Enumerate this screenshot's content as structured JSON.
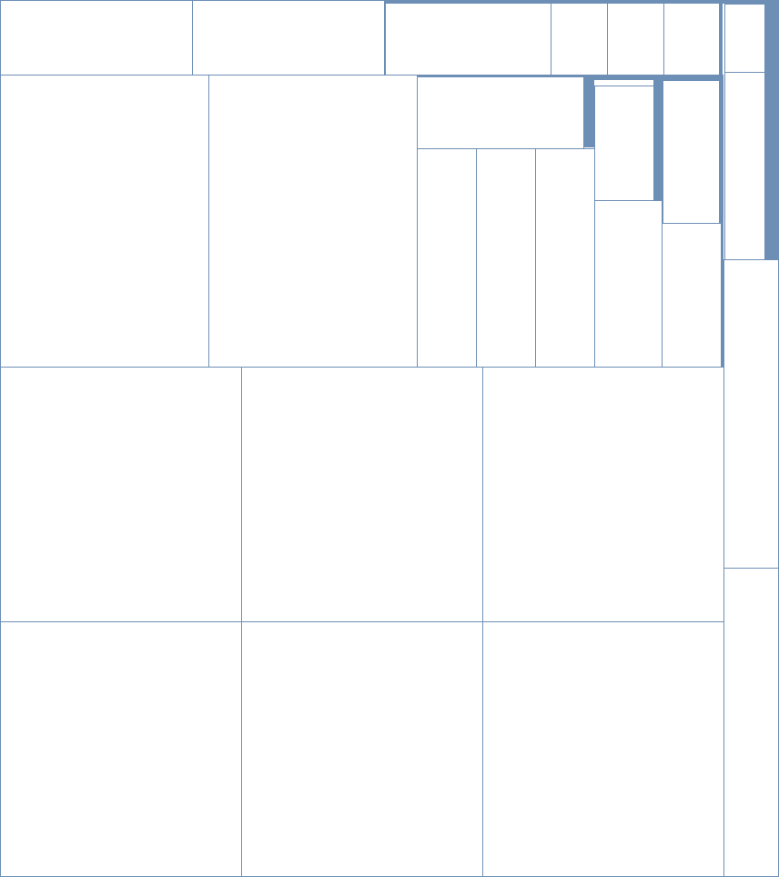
{
  "diagram": {
    "type": "treemap",
    "labels_shown": false,
    "border_color": "#6e8fb5",
    "fill_color": "#ffffff",
    "highlight_color": "#6e8fb5",
    "cell_count": 30
  }
}
